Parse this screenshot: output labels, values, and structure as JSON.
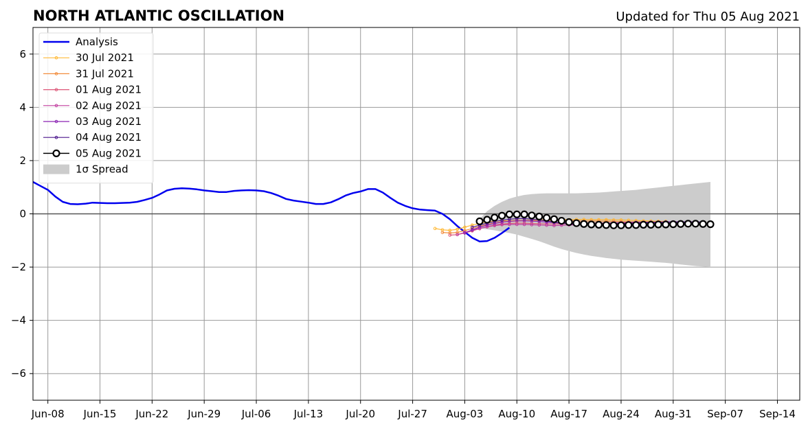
{
  "chart_data": {
    "type": "line",
    "title": "NORTH ATLANTIC OSCILLATION",
    "subtitle": "Updated for Thu 05 Aug 2021",
    "xlabel": "",
    "ylabel": "",
    "x_ticks": [
      "Jun-08",
      "Jun-15",
      "Jun-22",
      "Jun-29",
      "Jul-06",
      "Jul-13",
      "Jul-20",
      "Jul-27",
      "Aug-03",
      "Aug-10",
      "Aug-17",
      "Aug-24",
      "Aug-31",
      "Sep-07",
      "Sep-14"
    ],
    "x_range": [
      "2021-06-06",
      "2021-09-17"
    ],
    "y_ticks": [
      -6,
      -4,
      -2,
      0,
      2,
      4,
      6
    ],
    "ylim": [
      -7,
      7
    ],
    "grid": true,
    "legend_position": "top-left",
    "analysis": {
      "name": "Analysis",
      "color": "#0000ee",
      "start_date": "2021-06-06",
      "values": [
        1.2,
        1.05,
        0.9,
        0.65,
        0.45,
        0.37,
        0.36,
        0.38,
        0.42,
        0.41,
        0.4,
        0.4,
        0.41,
        0.42,
        0.45,
        0.52,
        0.6,
        0.73,
        0.88,
        0.94,
        0.96,
        0.95,
        0.92,
        0.88,
        0.85,
        0.82,
        0.82,
        0.86,
        0.88,
        0.89,
        0.88,
        0.85,
        0.78,
        0.68,
        0.56,
        0.5,
        0.46,
        0.42,
        0.37,
        0.37,
        0.43,
        0.55,
        0.69,
        0.78,
        0.84,
        0.93,
        0.93,
        0.8,
        0.6,
        0.42,
        0.3,
        0.21,
        0.16,
        0.14,
        0.12,
        0.0,
        -0.2,
        -0.46,
        -0.68,
        -0.9,
        -1.04,
        -1.02,
        -0.9,
        -0.72,
        -0.52
      ]
    },
    "forecasts": [
      {
        "name": "30 Jul 2021",
        "color": "#ffb833",
        "start_date": "2021-07-30",
        "values": [
          -0.55,
          -0.6,
          -0.62,
          -0.58,
          -0.5,
          -0.42,
          -0.36,
          -0.3,
          -0.28,
          -0.26,
          -0.26,
          -0.24,
          -0.25,
          -0.24,
          -0.23,
          -0.22,
          -0.22,
          -0.21,
          -0.22,
          -0.21,
          -0.21,
          -0.22,
          -0.22,
          -0.22,
          -0.23,
          -0.23,
          -0.24,
          -0.25,
          -0.26,
          -0.27,
          -0.28,
          -0.28
        ]
      },
      {
        "name": "31 Jul 2021",
        "color": "#f28c3c",
        "start_date": "2021-07-31",
        "values": [
          -0.7,
          -0.72,
          -0.7,
          -0.63,
          -0.55,
          -0.47,
          -0.4,
          -0.34,
          -0.3,
          -0.28,
          -0.27,
          -0.26,
          -0.25,
          -0.25,
          -0.25,
          -0.25,
          -0.25,
          -0.26,
          -0.26,
          -0.27,
          -0.27,
          -0.27,
          -0.28,
          -0.28,
          -0.29,
          -0.3,
          -0.3,
          -0.3,
          -0.31,
          -0.31,
          -0.31,
          -0.32
        ]
      },
      {
        "name": "01 Aug 2021",
        "color": "#dd5577",
        "start_date": "2021-08-01",
        "values": [
          -0.8,
          -0.78,
          -0.72,
          -0.64,
          -0.56,
          -0.48,
          -0.42,
          -0.38,
          -0.36,
          -0.35,
          -0.35,
          -0.36,
          -0.37,
          -0.38,
          -0.38,
          -0.38,
          -0.37,
          -0.36,
          -0.35,
          -0.34,
          -0.34,
          -0.34,
          -0.33,
          -0.33,
          -0.32,
          -0.32,
          -0.32,
          -0.31,
          -0.31,
          -0.31,
          -0.3,
          -0.3
        ]
      },
      {
        "name": "02 Aug 2021",
        "color": "#c03d9e",
        "start_date": "2021-08-02",
        "values": [
          -0.78,
          -0.7,
          -0.62,
          -0.55,
          -0.49,
          -0.44,
          -0.41,
          -0.4,
          -0.4,
          -0.4,
          -0.41,
          -0.42,
          -0.43,
          -0.44,
          -0.43,
          -0.42,
          -0.41,
          -0.4,
          -0.39,
          -0.38,
          -0.37,
          -0.36,
          -0.35,
          -0.34,
          -0.33,
          -0.32,
          -0.32,
          -0.31,
          -0.31,
          -0.3,
          -0.3,
          -0.3
        ]
      },
      {
        "name": "03 Aug 2021",
        "color": "#8a22b2",
        "start_date": "2021-08-03",
        "values": [
          -0.72,
          -0.6,
          -0.5,
          -0.42,
          -0.36,
          -0.31,
          -0.28,
          -0.26,
          -0.26,
          -0.27,
          -0.29,
          -0.31,
          -0.33,
          -0.35,
          -0.36,
          -0.37,
          -0.37,
          -0.37,
          -0.37,
          -0.36,
          -0.35,
          -0.34,
          -0.33,
          -0.32,
          -0.32,
          -0.31,
          -0.31,
          -0.3,
          -0.3,
          -0.3,
          -0.3,
          -0.3
        ]
      },
      {
        "name": "04 Aug 2021",
        "color": "#4a148c",
        "start_date": "2021-08-04",
        "values": [
          -0.5,
          -0.42,
          -0.35,
          -0.29,
          -0.24,
          -0.2,
          -0.18,
          -0.18,
          -0.2,
          -0.23,
          -0.27,
          -0.31,
          -0.35,
          -0.38,
          -0.4,
          -0.41,
          -0.41,
          -0.4,
          -0.39,
          -0.38,
          -0.37,
          -0.36,
          -0.35,
          -0.34,
          -0.33,
          -0.33,
          -0.32,
          -0.32,
          -0.31,
          -0.31,
          -0.31,
          -0.3
        ]
      },
      {
        "name": "05 Aug 2021",
        "color": "#000000",
        "start_date": "2021-08-05",
        "values": [
          -0.28,
          -0.22,
          -0.14,
          -0.07,
          -0.02,
          -0.02,
          -0.02,
          -0.06,
          -0.1,
          -0.15,
          -0.2,
          -0.26,
          -0.31,
          -0.35,
          -0.38,
          -0.4,
          -0.41,
          -0.42,
          -0.43,
          -0.43,
          -0.42,
          -0.42,
          -0.41,
          -0.41,
          -0.4,
          -0.4,
          -0.39,
          -0.38,
          -0.37,
          -0.37,
          -0.38,
          -0.39
        ]
      }
    ],
    "spread": {
      "name": "1σ Spread",
      "color": "#cccccc",
      "start_date": "2021-08-05",
      "upper": [
        -0.2,
        0.1,
        0.3,
        0.45,
        0.57,
        0.65,
        0.71,
        0.74,
        0.76,
        0.77,
        0.77,
        0.77,
        0.77,
        0.77,
        0.78,
        0.79,
        0.8,
        0.82,
        0.84,
        0.86,
        0.88,
        0.9,
        0.93,
        0.96,
        0.99,
        1.02,
        1.05,
        1.08,
        1.11,
        1.14,
        1.17,
        1.2
      ],
      "lower": [
        -0.55,
        -0.58,
        -0.62,
        -0.67,
        -0.72,
        -0.78,
        -0.86,
        -0.94,
        -1.03,
        -1.13,
        -1.23,
        -1.32,
        -1.4,
        -1.47,
        -1.53,
        -1.58,
        -1.62,
        -1.66,
        -1.69,
        -1.72,
        -1.74,
        -1.76,
        -1.78,
        -1.8,
        -1.82,
        -1.84,
        -1.87,
        -1.9,
        -1.93,
        -1.96,
        -1.98,
        -2.0
      ]
    }
  }
}
